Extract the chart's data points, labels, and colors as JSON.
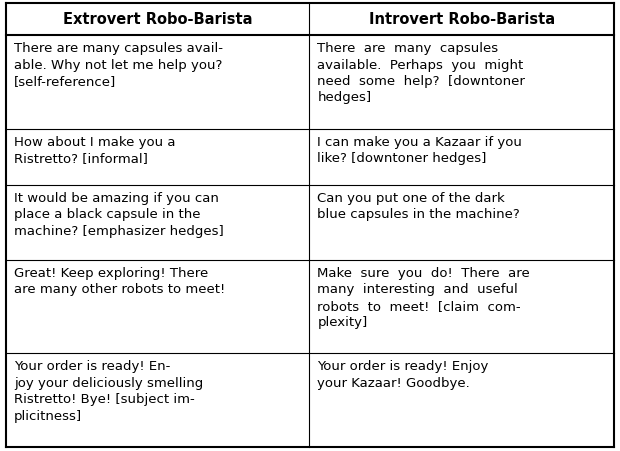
{
  "col1_header": "Extrovert Robo-Barista",
  "col2_header": "Introvert Robo-Barista",
  "col1_rows": [
    "There are many capsules avail-\nable. Why not let me help you?\n[self-reference]",
    "How about I make you a\nRistretto? [informal]",
    "It would be amazing if you can\nplace a black capsule in the\nmachine? [emphasizer hedges]",
    "Great! Keep exploring! There\nare many other robots to meet!",
    "Your order is ready! En-\njoy your deliciously smelling\nRistretto! Bye! [subject im-\nplicitness]"
  ],
  "col2_rows": [
    "There  are  many  capsules\navailable.  Perhaps  you  might\nneed  some  help?  [downtoner\nhedges]",
    "I can make you a Kazaar if you\nlike? [downtoner hedges]",
    "Can you put one of the dark\nblue capsules in the machine?",
    "Make  sure  you  do!  There  are\nmany  interesting  and  useful\nrobots  to  meet!  [claim  com-\nplexity]",
    "Your order is ready! Enjoy\nyour Kazaar! Goodbye."
  ],
  "row_line_counts": [
    4,
    2,
    3,
    2,
    4
  ],
  "row2_line_counts": [
    4,
    2,
    2,
    4,
    2
  ],
  "background_color": "#ffffff",
  "text_color": "#000000",
  "line_color": "#000000",
  "font_size": 9.5,
  "header_font_size": 10.5,
  "figwidth": 6.2,
  "figheight": 4.52,
  "dpi": 100
}
